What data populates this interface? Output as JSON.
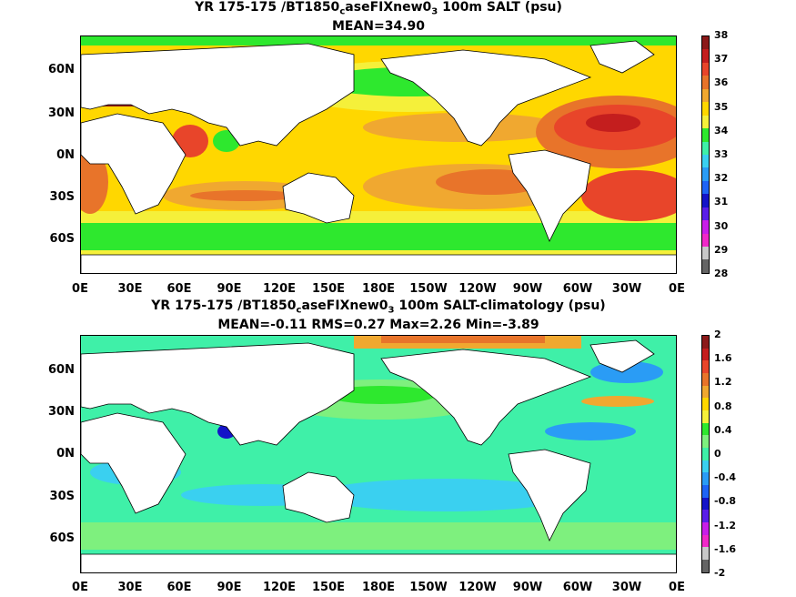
{
  "panels": [
    {
      "title_parts": [
        "YR 175-175 /BT1850",
        "c",
        "aseFIXnew0",
        "3",
        " 100m SALT (psu)"
      ],
      "subtitle": "MEAN=34.90",
      "colorbar": {
        "labels": [
          "38",
          "37",
          "36",
          "35",
          "34",
          "33",
          "32",
          "31",
          "30",
          "29",
          "28"
        ],
        "colors": [
          "#8b1a1a",
          "#c41e1e",
          "#e8452a",
          "#e8742a",
          "#f0a830",
          "#ffd700",
          "#f5f03a",
          "#2ee82e",
          "#3ff0a8",
          "#3ad0f0",
          "#2a9cf5",
          "#1e64f5",
          "#1414c8",
          "#5a1ee8",
          "#c81ee8",
          "#f028c8",
          "#c8c8c8",
          "#646464"
        ]
      },
      "y_labels": [
        "60N",
        "30N",
        "0N",
        "30S",
        "60S"
      ],
      "x_labels": [
        "0E",
        "30E",
        "60E",
        "90E",
        "120E",
        "150E",
        "180E",
        "150W",
        "120W",
        "90W",
        "60W",
        "30W",
        "0E"
      ]
    },
    {
      "title_parts": [
        "YR 175-175 /BT1850",
        "c",
        "aseFIXnew0",
        "3",
        " 100m SALT-climatology (psu)"
      ],
      "subtitle": "MEAN=-0.11   RMS=0.27   Max=2.26   Min=-3.89",
      "colorbar": {
        "labels": [
          "2",
          "1.6",
          "1.2",
          "0.8",
          "0.4",
          "0",
          "-0.4",
          "-0.8",
          "-1.2",
          "-1.6",
          "-2"
        ],
        "colors": [
          "#8b1a1a",
          "#c41e1e",
          "#e8452a",
          "#e8742a",
          "#f0a830",
          "#ffd700",
          "#f5f03a",
          "#2ee82e",
          "#7ef07e",
          "#3ff0a8",
          "#3ad0f0",
          "#2a9cf5",
          "#1e64f5",
          "#1414c8",
          "#5a1ee8",
          "#c81ee8",
          "#f028c8",
          "#c8c8c8",
          "#646464"
        ]
      },
      "y_labels": [
        "60N",
        "30N",
        "0N",
        "30S",
        "60S"
      ],
      "x_labels": [
        "0E",
        "30E",
        "60E",
        "90E",
        "120E",
        "150E",
        "180E",
        "150W",
        "120W",
        "90W",
        "60W",
        "30W",
        "0E"
      ]
    }
  ]
}
